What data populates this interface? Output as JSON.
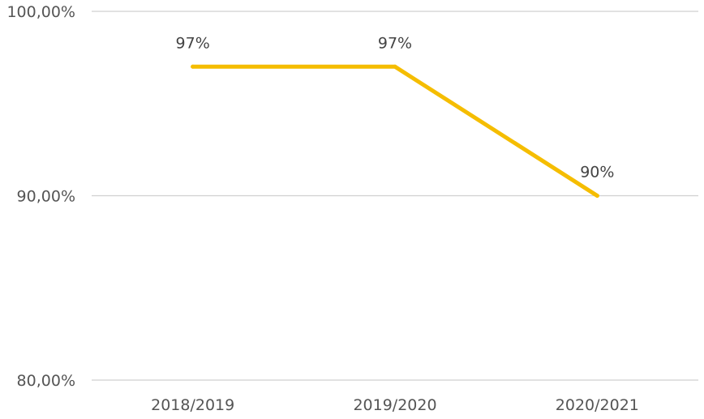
{
  "chart_data": {
    "type": "line",
    "categories": [
      "2018/2019",
      "2019/2020",
      "2020/2021"
    ],
    "series": [
      {
        "values": [
          97,
          97,
          90
        ],
        "color": "#f5bd00",
        "data_labels": [
          "97%",
          "97%",
          "90%"
        ]
      }
    ],
    "ylim": [
      80,
      100
    ],
    "y_ticks": [
      {
        "value": 100,
        "label": "100,00%"
      },
      {
        "value": 90,
        "label": "90,00%"
      },
      {
        "value": 80,
        "label": "80,00%"
      }
    ],
    "grid": true,
    "legend": "none",
    "title": "",
    "xlabel": "",
    "ylabel": ""
  }
}
